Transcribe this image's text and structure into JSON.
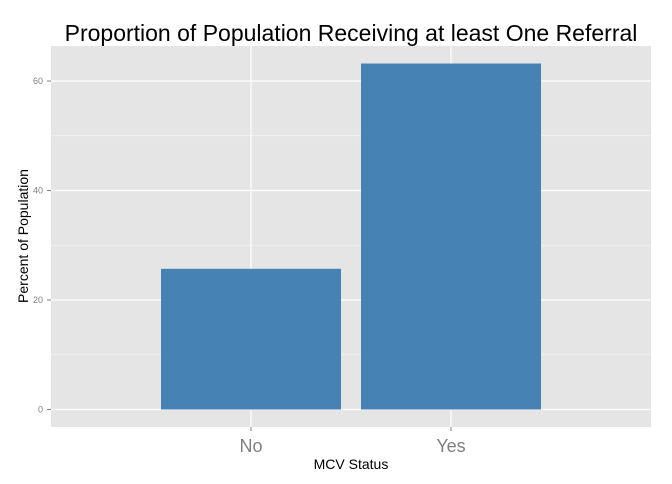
{
  "chart_data": {
    "type": "bar",
    "title": "Proportion of Population Receiving at least One Referral",
    "xlabel": "MCV Status",
    "ylabel": "Percent of Population",
    "categories": [
      "No",
      "Yes"
    ],
    "values": [
      25.7,
      63.2
    ],
    "yticks": [
      0,
      20,
      40,
      60
    ],
    "ytick_labels": [
      "0",
      "20",
      "40",
      "60"
    ],
    "ylim": [
      -3.2,
      66.4
    ],
    "grid": true,
    "bar_color": "#4682b4",
    "panel_background": "#e5e5e5",
    "grid_color": "#ffffff"
  }
}
